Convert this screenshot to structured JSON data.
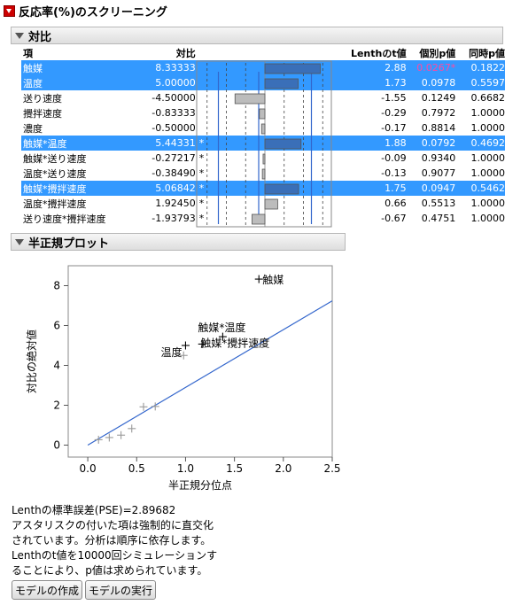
{
  "report_title": "反応率(%)のスクリーニング",
  "contrasts": {
    "title": "対比",
    "headers": {
      "term": "項",
      "contrast": "対比",
      "t": "Lenthのt値",
      "p": "個別p値",
      "sim": "同時p値"
    },
    "rows": [
      {
        "term": "触媒",
        "contrast": "8.33333",
        "star": "",
        "t": "2.88",
        "p": "0.0267*",
        "p_red": true,
        "sim": "0.1822",
        "selected": true
      },
      {
        "term": "温度",
        "contrast": "5.00000",
        "star": "",
        "t": "1.73",
        "p": "0.0978",
        "p_red": false,
        "sim": "0.5597",
        "selected": true
      },
      {
        "term": "送り速度",
        "contrast": "-4.50000",
        "star": "",
        "t": "-1.55",
        "p": "0.1249",
        "p_red": false,
        "sim": "0.6682",
        "selected": false
      },
      {
        "term": "攪拌速度",
        "contrast": "-0.83333",
        "star": "",
        "t": "-0.29",
        "p": "0.7972",
        "p_red": false,
        "sim": "1.0000",
        "selected": false
      },
      {
        "term": "濃度",
        "contrast": "-0.50000",
        "star": "",
        "t": "-0.17",
        "p": "0.8814",
        "p_red": false,
        "sim": "1.0000",
        "selected": false
      },
      {
        "term": "触媒*温度",
        "contrast": "5.44331",
        "star": "*",
        "t": "1.88",
        "p": "0.0792",
        "p_red": false,
        "sim": "0.4692",
        "selected": true
      },
      {
        "term": "触媒*送り速度",
        "contrast": "-0.27217",
        "star": "*",
        "t": "-0.09",
        "p": "0.9340",
        "p_red": false,
        "sim": "1.0000",
        "selected": false
      },
      {
        "term": "温度*送り速度",
        "contrast": "-0.38490",
        "star": "*",
        "t": "-0.13",
        "p": "0.9077",
        "p_red": false,
        "sim": "1.0000",
        "selected": false
      },
      {
        "term": "触媒*攪拌速度",
        "contrast": "5.06842",
        "star": "*",
        "t": "1.75",
        "p": "0.0947",
        "p_red": false,
        "sim": "0.5462",
        "selected": true
      },
      {
        "term": "温度*攪拌速度",
        "contrast": "1.92450",
        "star": "*",
        "t": "0.66",
        "p": "0.5513",
        "p_red": false,
        "sim": "1.0000",
        "selected": false
      },
      {
        "term": "送り速度*攪拌速度",
        "contrast": "-1.93793",
        "star": "*",
        "t": "-0.67",
        "p": "0.4751",
        "p_red": false,
        "sim": "1.0000",
        "selected": false
      }
    ],
    "bar_scale_max": 10
  },
  "halfnormal": {
    "title": "半正規プロット"
  },
  "chart_data": {
    "type": "scatter",
    "xlabel": "半正規分位点",
    "ylabel": "対比の絶対値",
    "xlim": [
      -0.2,
      2.5
    ],
    "ylim": [
      -0.6,
      9.0
    ],
    "xticks": [
      "0.0",
      "0.5",
      "1.0",
      "1.5",
      "2.0",
      "2.5"
    ],
    "yticks": [
      "0",
      "2",
      "4",
      "6",
      "8"
    ],
    "points": [
      {
        "x": 0.11,
        "y": 0.27,
        "label": ""
      },
      {
        "x": 0.22,
        "y": 0.38,
        "label": ""
      },
      {
        "x": 0.34,
        "y": 0.5,
        "label": ""
      },
      {
        "x": 0.45,
        "y": 0.83,
        "label": ""
      },
      {
        "x": 0.57,
        "y": 1.92,
        "label": ""
      },
      {
        "x": 0.69,
        "y": 1.94,
        "label": ""
      },
      {
        "x": 0.98,
        "y": 4.5,
        "label": ""
      },
      {
        "x": 1.0,
        "y": 5.0,
        "label": "温度"
      },
      {
        "x": 1.17,
        "y": 5.07,
        "label": "触媒*攪拌速度"
      },
      {
        "x": 1.38,
        "y": 5.44,
        "label": "触媒*温度"
      },
      {
        "x": 1.75,
        "y": 8.33,
        "label": "触媒"
      }
    ],
    "fit_line": {
      "x0": 0.0,
      "y0": 0.0,
      "x1": 2.5,
      "y1": 7.24
    },
    "line_color": "#3366cc"
  },
  "footer": {
    "pse": "Lenthの標準誤差(PSE)=2.89682",
    "note1": "アスタリスクの付いた項は強制的に直交化",
    "note2": "されています。分析は順序に依存します。",
    "note3": "Lenthのt値を10000回シミュレーションす",
    "note4": "ることにより、p値は求められています。"
  },
  "buttons": {
    "make_model": "モデルの作成",
    "run_model": "モデルの実行"
  }
}
